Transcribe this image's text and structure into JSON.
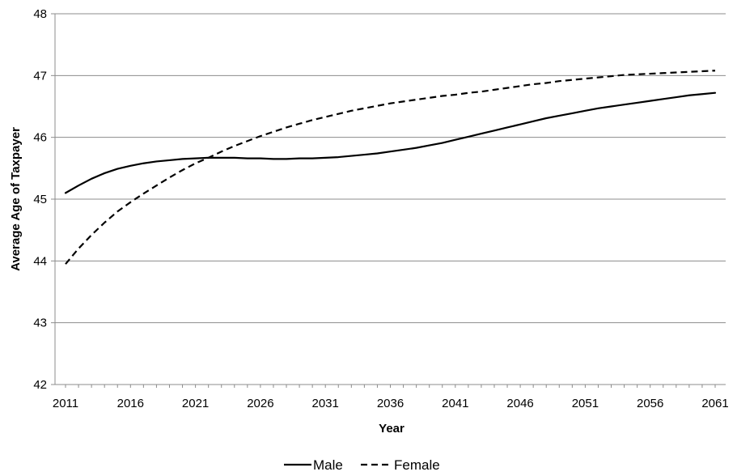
{
  "chart_data": {
    "type": "line",
    "title": "",
    "xlabel": "Year",
    "ylabel": "Average Age of Taxpayer",
    "xlim": [
      2011,
      2061
    ],
    "ylim": [
      42,
      48
    ],
    "x_ticks": [
      "2011",
      "2016",
      "2021",
      "2026",
      "2031",
      "2036",
      "2041",
      "2046",
      "2051",
      "2056",
      "2061"
    ],
    "y_ticks": [
      "42",
      "43",
      "44",
      "45",
      "46",
      "47",
      "48"
    ],
    "grid": "horizontal",
    "legend_position": "bottom",
    "series": [
      {
        "name": "Male",
        "style": "solid",
        "color": "#000000",
        "x": [
          2011,
          2012,
          2013,
          2014,
          2015,
          2016,
          2017,
          2018,
          2019,
          2020,
          2021,
          2022,
          2023,
          2024,
          2025,
          2026,
          2027,
          2028,
          2029,
          2030,
          2031,
          2032,
          2033,
          2034,
          2035,
          2036,
          2037,
          2038,
          2039,
          2040,
          2041,
          2042,
          2043,
          2044,
          2045,
          2046,
          2047,
          2048,
          2049,
          2050,
          2051,
          2052,
          2053,
          2054,
          2055,
          2056,
          2057,
          2058,
          2059,
          2060,
          2061
        ],
        "values": [
          45.1,
          45.22,
          45.33,
          45.42,
          45.49,
          45.54,
          45.58,
          45.61,
          45.63,
          45.65,
          45.66,
          45.67,
          45.67,
          45.67,
          45.66,
          45.66,
          45.65,
          45.65,
          45.66,
          45.66,
          45.67,
          45.68,
          45.7,
          45.72,
          45.74,
          45.77,
          45.8,
          45.83,
          45.87,
          45.91,
          45.96,
          46.01,
          46.06,
          46.11,
          46.16,
          46.21,
          46.26,
          46.31,
          46.35,
          46.39,
          46.43,
          46.47,
          46.5,
          46.53,
          46.56,
          46.59,
          46.62,
          46.65,
          46.68,
          46.7,
          46.72
        ]
      },
      {
        "name": "Female",
        "style": "dashed",
        "color": "#000000",
        "x": [
          2011,
          2012,
          2013,
          2014,
          2015,
          2016,
          2017,
          2018,
          2019,
          2020,
          2021,
          2022,
          2023,
          2024,
          2025,
          2026,
          2027,
          2028,
          2029,
          2030,
          2031,
          2032,
          2033,
          2034,
          2035,
          2036,
          2037,
          2038,
          2039,
          2040,
          2041,
          2042,
          2043,
          2044,
          2045,
          2046,
          2047,
          2048,
          2049,
          2050,
          2051,
          2052,
          2053,
          2054,
          2055,
          2056,
          2057,
          2058,
          2059,
          2060,
          2061
        ],
        "values": [
          43.95,
          44.2,
          44.42,
          44.62,
          44.8,
          44.95,
          45.09,
          45.22,
          45.35,
          45.47,
          45.58,
          45.67,
          45.77,
          45.86,
          45.94,
          46.02,
          46.09,
          46.16,
          46.22,
          46.28,
          46.33,
          46.38,
          46.43,
          46.47,
          46.51,
          46.55,
          46.58,
          46.61,
          46.64,
          46.67,
          46.69,
          46.72,
          46.74,
          46.77,
          46.8,
          46.83,
          46.86,
          46.88,
          46.91,
          46.93,
          46.95,
          46.97,
          46.99,
          47.01,
          47.02,
          47.03,
          47.04,
          47.05,
          47.06,
          47.07,
          47.08
        ]
      }
    ]
  }
}
